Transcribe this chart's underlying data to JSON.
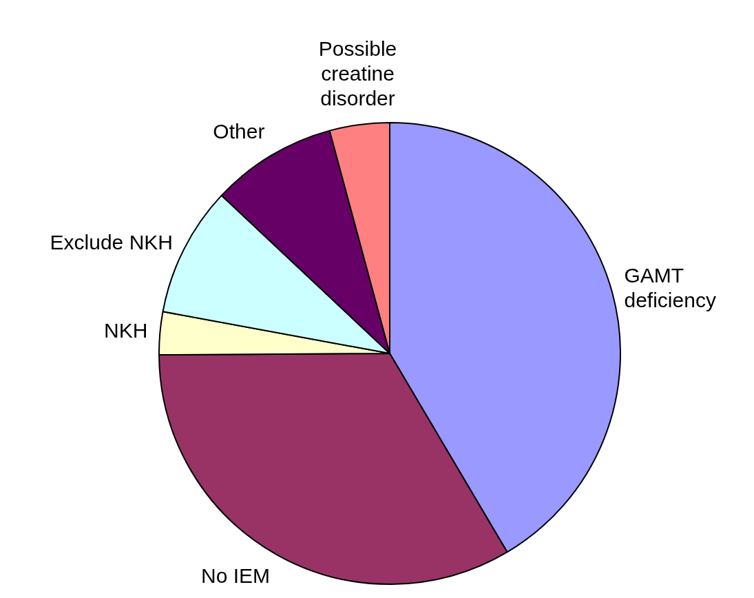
{
  "chart_data": {
    "type": "pie",
    "categories": [
      "GAMT deficiency",
      "No IEM",
      "NKH",
      "Exclude NKH",
      "Other",
      "Possible creatine disorder"
    ],
    "values": [
      41.5,
      33.4,
      3.0,
      9.1,
      8.8,
      4.2
    ],
    "colors": [
      "#9999ff",
      "#993366",
      "#ffffcc",
      "#ccffff",
      "#660066",
      "#ff8080"
    ],
    "legend": false
  }
}
